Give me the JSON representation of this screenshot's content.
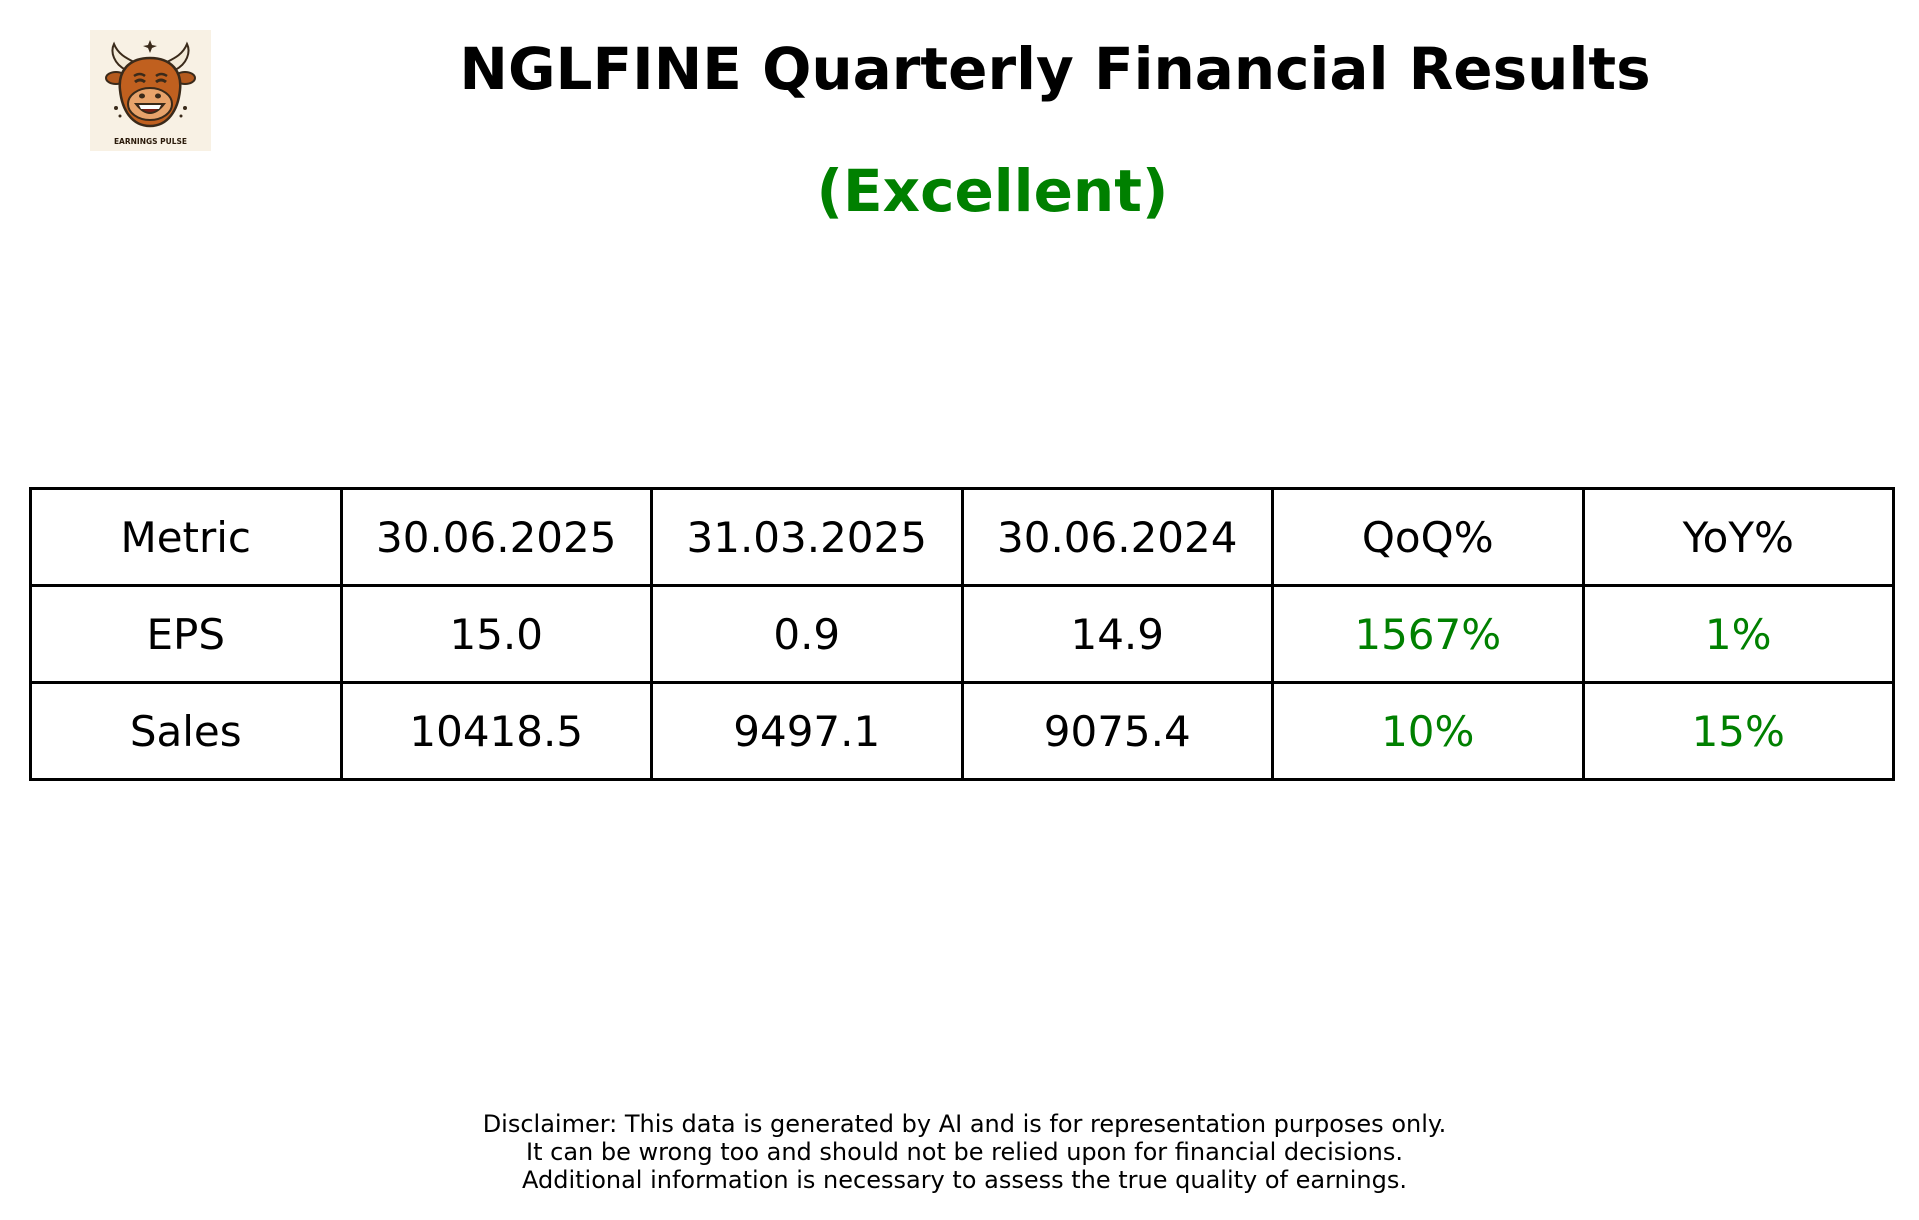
{
  "header": {
    "title": "NGLFINE Quarterly Financial Results",
    "rating": "(Excellent)",
    "rating_color": "#008000",
    "logo": {
      "icon": "bull-icon",
      "caption": "EARNINGS PULSE"
    }
  },
  "chart_data": {
    "type": "table",
    "columns": [
      "Metric",
      "30.06.2025",
      "31.03.2025",
      "30.06.2024",
      "QoQ%",
      "YoY%"
    ],
    "rows": [
      {
        "metric": "EPS",
        "q_30_06_2025": "15.0",
        "q_31_03_2025": "0.9",
        "q_30_06_2024": "14.9",
        "qoq": "1567%",
        "yoy": "1%"
      },
      {
        "metric": "Sales",
        "q_30_06_2025": "10418.5",
        "q_31_03_2025": "9497.1",
        "q_30_06_2024": "9075.4",
        "qoq": "10%",
        "yoy": "15%"
      }
    ],
    "change_color": "#008000"
  },
  "disclaimer": [
    "Disclaimer: This data is generated by AI and is for representation purposes only.",
    "It can be wrong too and should not be relied upon for financial decisions.",
    "Additional information is necessary to assess the true quality of earnings."
  ]
}
